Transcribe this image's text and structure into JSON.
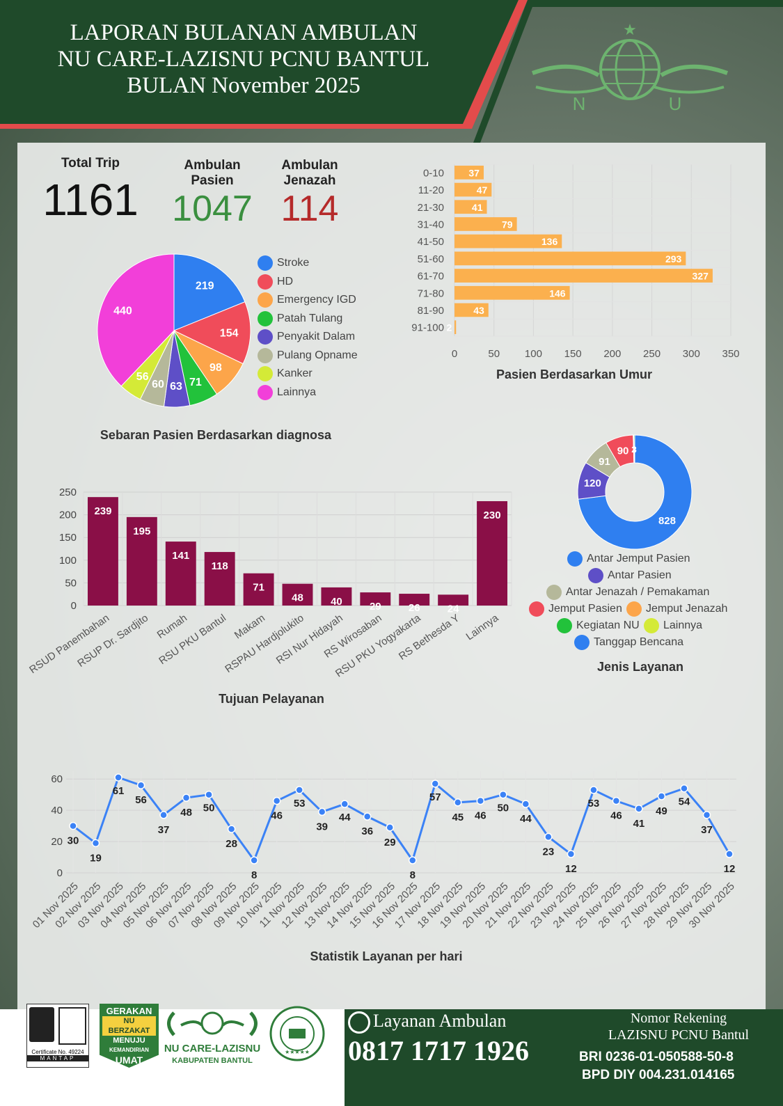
{
  "header": {
    "title_line1": "LAPORAN BULANAN AMBULAN",
    "title_line2": "NU CARE-LAZISNU PCNU BANTUL",
    "title_line3": "BULAN November 2025",
    "logo_letters": [
      "N",
      "U"
    ]
  },
  "stats": {
    "total_label": "Total Trip",
    "total_value": "1161",
    "pasien_label1": "Ambulan",
    "pasien_label2": "Pasien",
    "pasien_value": "1047",
    "jenazah_label1": "Ambulan",
    "jenazah_label2": "Jenazah",
    "jenazah_value": "114"
  },
  "colors": {
    "green_dark": "#1f4a2a",
    "accent_red": "#e34b4b",
    "pasien_green": "#3a8f3f",
    "jenazah_red": "#b52a2a",
    "bar_orange": "#fbb04e",
    "bar_maroon": "#8a0f47",
    "line_blue": "#3b82f6"
  },
  "chart_data": [
    {
      "type": "pie",
      "title": "Sebaran Pasien Berdasarkan diagnosa",
      "legend": "right",
      "slices": [
        {
          "name": "Stroke",
          "value": 219,
          "color": "#2f7ff0"
        },
        {
          "name": "HD",
          "value": 154,
          "color": "#f04c5a"
        },
        {
          "name": "Emergency IGD",
          "value": 98,
          "color": "#fca54a"
        },
        {
          "name": "Patah Tulang",
          "value": 71,
          "color": "#22c23b"
        },
        {
          "name": "Penyakit Dalam",
          "value": 63,
          "color": "#5e4fc7"
        },
        {
          "name": "Pulang Opname",
          "value": 60,
          "color": "#b5b89a"
        },
        {
          "name": "Kanker",
          "value": 56,
          "color": "#d4ea37"
        },
        {
          "name": "Lainnya",
          "value": 440,
          "color": "#f23fd9"
        }
      ]
    },
    {
      "type": "bar",
      "orientation": "horizontal",
      "title": "Pasien Berdasarkan Umur",
      "categories": [
        "0-10",
        "11-20",
        "21-30",
        "31-40",
        "41-50",
        "51-60",
        "61-70",
        "71-80",
        "81-90",
        "91-100"
      ],
      "values": [
        37,
        47,
        41,
        79,
        136,
        293,
        327,
        146,
        43,
        2
      ],
      "xlim": [
        0,
        350
      ],
      "xticks": [
        0,
        50,
        100,
        150,
        200,
        250,
        300,
        350
      ],
      "grid": true
    },
    {
      "type": "bar",
      "title": "Tujuan Pelayanan",
      "categories": [
        "RSUD Panembahan",
        "RSUP Dr. Sardjito",
        "Rumah",
        "RSU PKU Bantul",
        "Makam",
        "RSPAU Hardjolukito",
        "RSI Nur Hidayah",
        "RS Wirosaban",
        "RSU PKU Yogyakarta",
        "RS Bethesda Y",
        "Lainnya"
      ],
      "values": [
        239,
        195,
        141,
        118,
        71,
        48,
        40,
        29,
        26,
        24,
        230
      ],
      "ylim": [
        0,
        250
      ],
      "yticks": [
        0,
        50,
        100,
        150,
        200,
        250
      ],
      "grid": true
    },
    {
      "type": "pie",
      "variant": "donut",
      "title": "Jenis Layanan",
      "legend": "bottom",
      "slices": [
        {
          "name": "Antar Jemput Pasien",
          "value": 828,
          "color": "#2f7ff0"
        },
        {
          "name": "Antar Pasien",
          "value": 120,
          "color": "#5e4fc7"
        },
        {
          "name": "Antar Jenazah / Pemakaman",
          "value": 91,
          "color": "#b5b89a"
        },
        {
          "name": "Jemput Pasien",
          "value": 90,
          "color": "#f04c5a"
        },
        {
          "name": "Jemput Jenazah",
          "value": 2,
          "color": "#fca54a"
        },
        {
          "name": "Kegiatan NU",
          "value": 3,
          "color": "#22c23b"
        },
        {
          "name": "Lainnya",
          "value": 0,
          "color": "#d4ea37"
        },
        {
          "name": "Tanggap Bencana",
          "value": 0,
          "color": "#2f7ff0"
        }
      ],
      "labels": [
        "828",
        "120",
        "91",
        "90",
        "2",
        "3"
      ]
    },
    {
      "type": "line",
      "title": "Statistik Layanan per hari",
      "x": [
        "01 Nov 2025",
        "02 Nov 2025",
        "03 Nov 2025",
        "04 Nov 2025",
        "05 Nov 2025",
        "06 Nov 2025",
        "07 Nov 2025",
        "08 Nov 2025",
        "09 Nov 2025",
        "10 Nov 2025",
        "11 Nov 2025",
        "12 Nov 2025",
        "13 Nov 2025",
        "14 Nov 2025",
        "15 Nov 2025",
        "16 Nov 2025",
        "17 Nov 2025",
        "18 Nov 2025",
        "19 Nov 2025",
        "20 Nov 2025",
        "21 Nov 2025",
        "22 Nov 2025",
        "23 Nov 2025",
        "24 Nov 2025",
        "25 Nov 2025",
        "26 Nov 2025",
        "27 Nov 2025",
        "28 Nov 2025",
        "29 Nov 2025",
        "30 Nov 2025"
      ],
      "values": [
        30,
        19,
        61,
        56,
        37,
        48,
        50,
        28,
        8,
        46,
        53,
        39,
        44,
        36,
        29,
        8,
        57,
        45,
        46,
        50,
        44,
        23,
        12,
        53,
        46,
        41,
        49,
        54,
        37,
        12
      ],
      "ylim": [
        0,
        65
      ],
      "yticks": [
        0,
        20,
        40,
        60
      ],
      "grid": true
    }
  ],
  "footer": {
    "cert_text": "Certificate No. 49224",
    "cert_brand": "MANTAP",
    "gerakan": [
      "GERAKAN",
      "NU BERZAKAT",
      "MENUJU",
      "KEMANDIRIAN",
      "UMAT"
    ],
    "brand_name": "NU CARE-LAZISNU",
    "brand_sub": "KABUPATEN BANTUL",
    "layanan_label": "Layanan Ambulan",
    "phone": "0817 1717 1926",
    "rekening_label1": "Nomor Rekening",
    "rekening_label2": "LAZISNU PCNU Bantul",
    "bri": "BRI 0236-01-050588-50-8",
    "bpd": "BPD DIY 004.231.014165"
  }
}
